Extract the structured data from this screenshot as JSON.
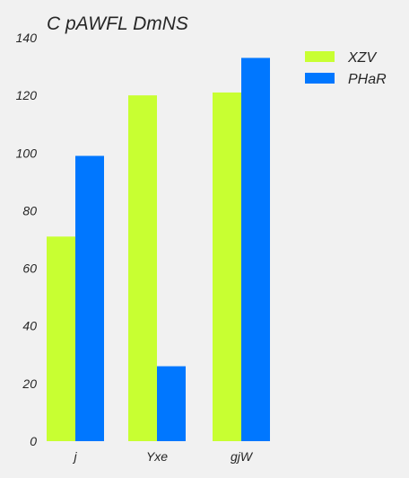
{
  "chart_data": {
    "type": "bar",
    "title": "C pAWFL  DmNS",
    "xlabel": "",
    "ylabel": "",
    "categories": [
      "j",
      "Yxe",
      "gjW"
    ],
    "series": [
      {
        "name": "XZV",
        "values": [
          71,
          120,
          121
        ],
        "color": "#c8ff32"
      },
      {
        "name": "PHaR",
        "values": [
          99,
          26,
          133
        ],
        "color": "#0077ff"
      }
    ],
    "ylim": [
      0,
      140
    ],
    "yticks": [
      0,
      20,
      40,
      60,
      80,
      100,
      120,
      140
    ],
    "grid": false,
    "legend_position": "top-right"
  }
}
